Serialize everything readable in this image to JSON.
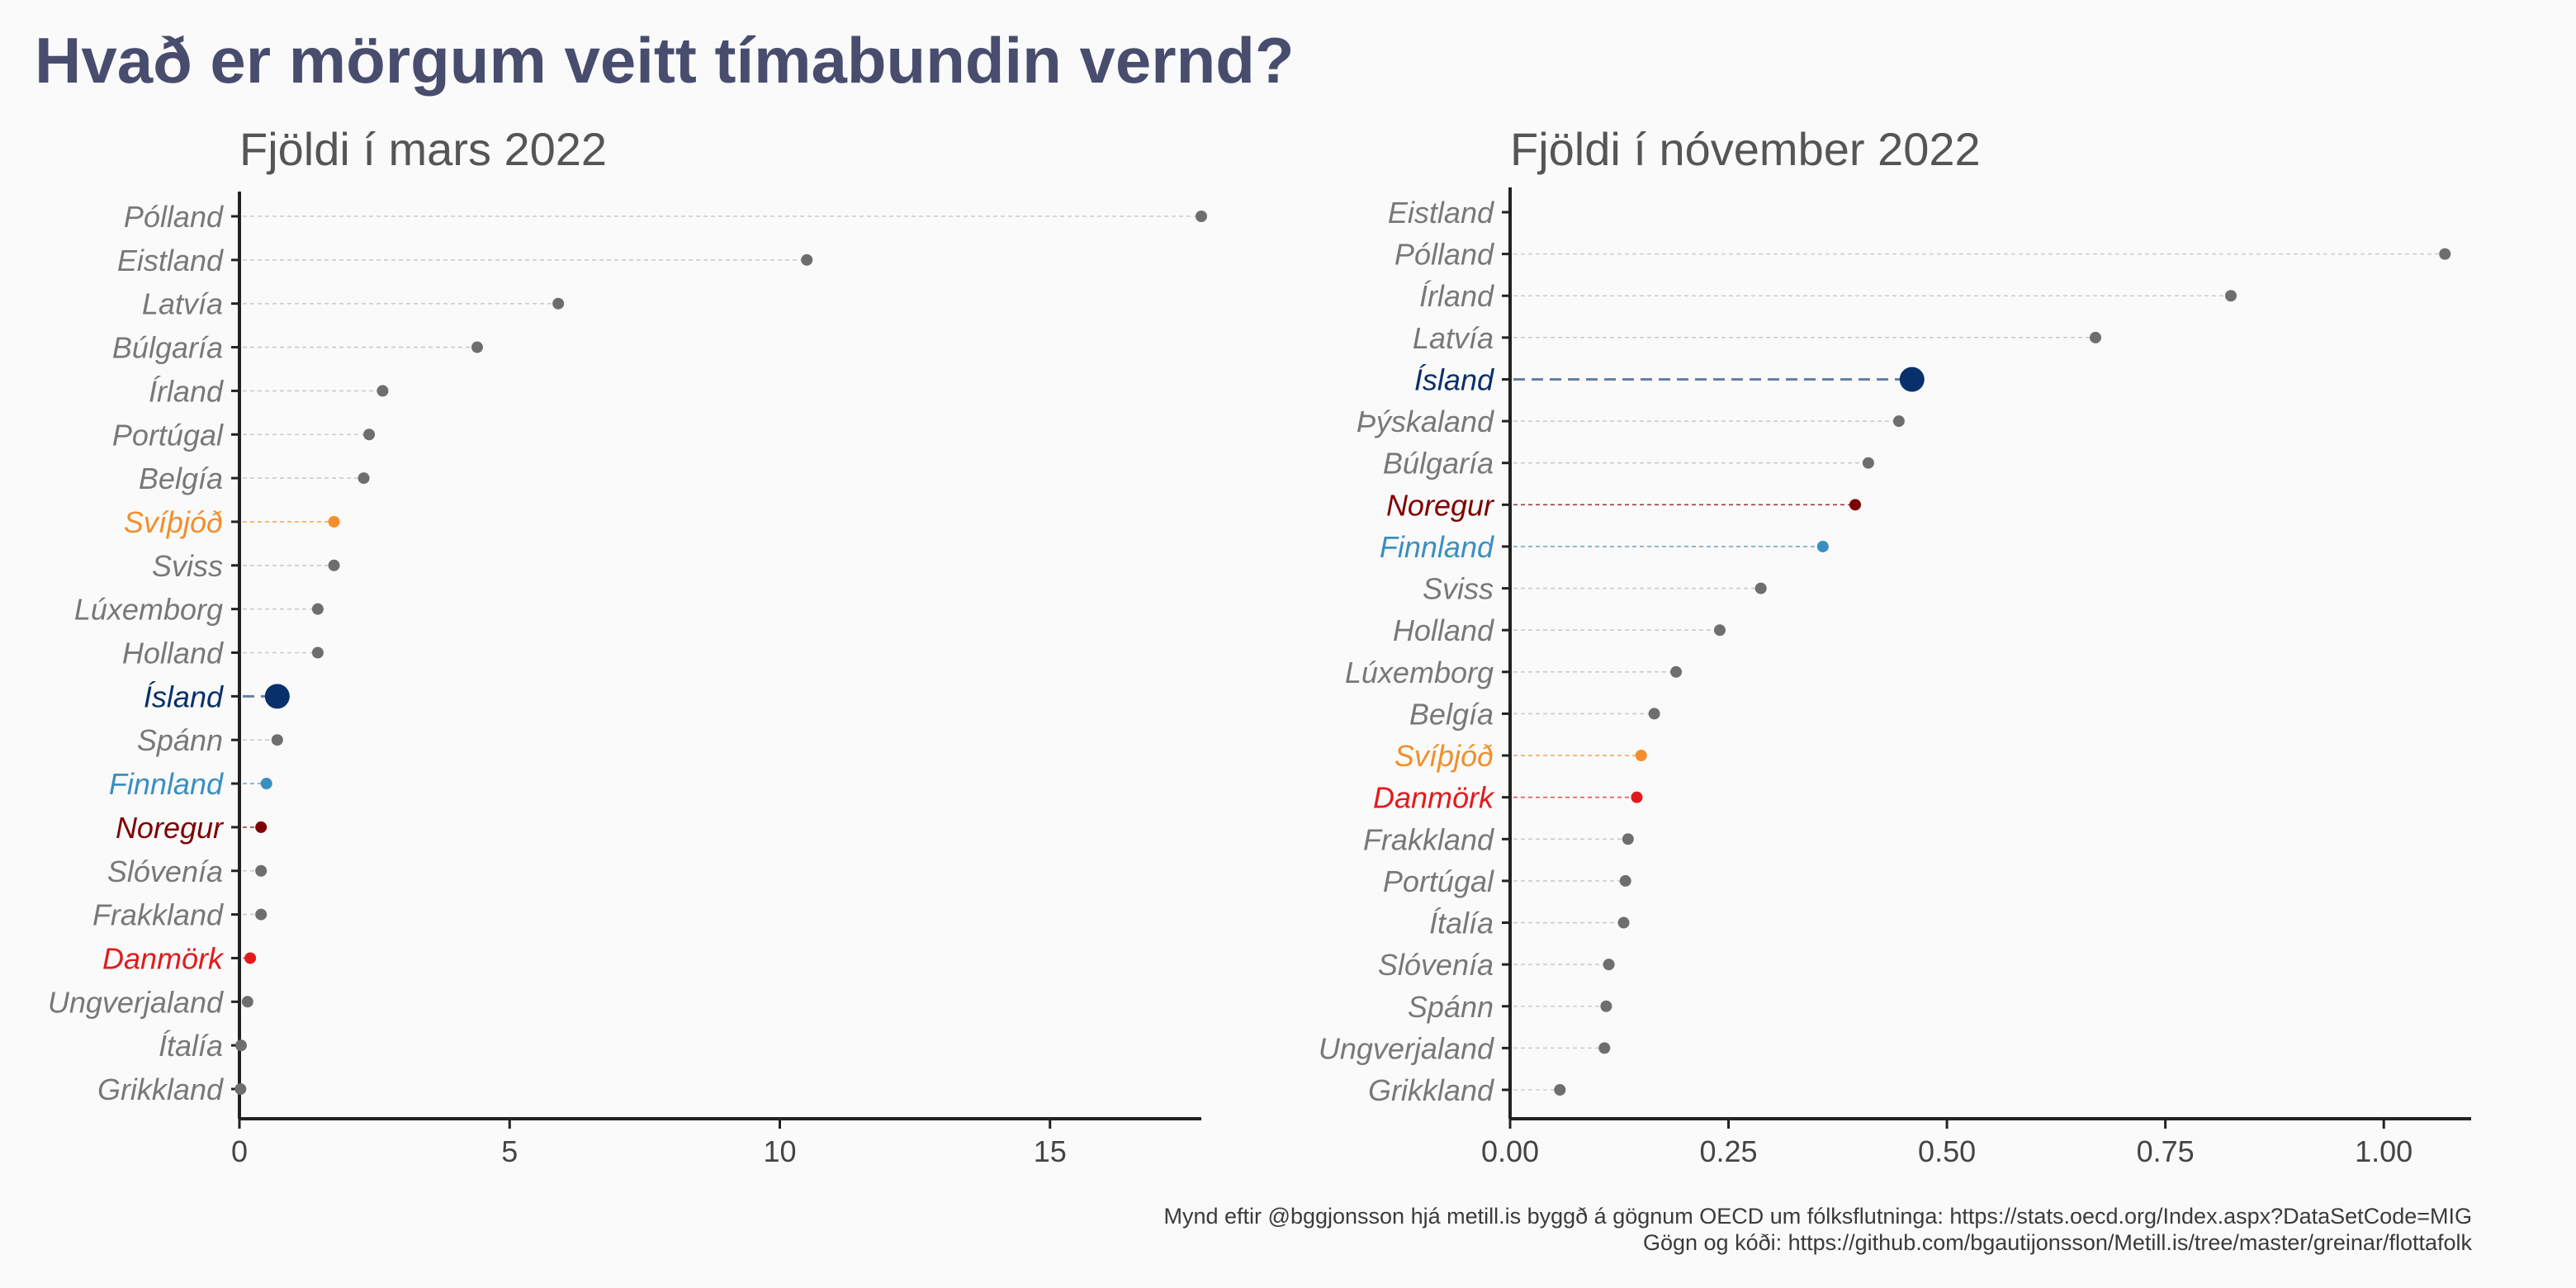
{
  "title": "Hvað er mörgum veitt tímabundin vernd?",
  "caption_line1": "Mynd eftir @bggjonsson hjá metill.is byggð á gögnum OECD um fólksflutninga: https://stats.oecd.org/Index.aspx?DataSetCode=MIG",
  "caption_line2": "Gögn og kóði: https://github.com/bgautijonsson/Metill.is/tree/master/greinar/flottafolk",
  "colors": {
    "default": "#6e6e6e",
    "label_default": "#787878",
    "Ísland": "#08306b",
    "Svíþjóð": "#f28e2b",
    "Finnland": "#3a8fc0",
    "Noregur": "#7f0000",
    "Danmörk": "#e31a1c",
    "title": "#484d6e",
    "axis": "#222222"
  },
  "chart_data": [
    {
      "type": "lollipop",
      "subtitle": "Fjöldi í mars 2022",
      "xlim": [
        0,
        17.8
      ],
      "xticks": [
        0,
        5,
        10,
        15
      ],
      "xtick_labels": [
        "0",
        "5",
        "10",
        "15"
      ],
      "highlight": "Ísland",
      "categories": [
        "Pólland",
        "Eistland",
        "Latvía",
        "Búlgaría",
        "Írland",
        "Portúgal",
        "Belgía",
        "Svíþjóð",
        "Sviss",
        "Lúxemborg",
        "Holland",
        "Ísland",
        "Spánn",
        "Finnland",
        "Noregur",
        "Slóvenía",
        "Frakkland",
        "Danmörk",
        "Ungverjaland",
        "Ítalía",
        "Grikkland"
      ],
      "values": [
        17.8,
        10.5,
        5.9,
        4.4,
        2.65,
        2.4,
        2.3,
        1.75,
        1.75,
        1.45,
        1.45,
        0.7,
        0.7,
        0.5,
        0.4,
        0.4,
        0.4,
        0.2,
        0.15,
        0.03,
        0.02
      ]
    },
    {
      "type": "lollipop",
      "subtitle": "Fjöldi í nóvember 2022",
      "xlim": [
        0,
        1.1
      ],
      "xticks": [
        0,
        0.25,
        0.5,
        0.75,
        1.0
      ],
      "xtick_labels": [
        "0.00",
        "0.25",
        "0.50",
        "0.75",
        "1.00"
      ],
      "highlight": "Ísland",
      "categories": [
        "Eistland",
        "Pólland",
        "Írland",
        "Latvía",
        "Ísland",
        "Þýskaland",
        "Búlgaría",
        "Noregur",
        "Finnland",
        "Sviss",
        "Holland",
        "Lúxemborg",
        "Belgía",
        "Svíþjóð",
        "Danmörk",
        "Frakkland",
        "Portúgal",
        "Ítalía",
        "Slóvenía",
        "Spánn",
        "Ungverjaland",
        "Grikkland"
      ],
      "values": [
        null,
        1.07,
        0.825,
        0.67,
        0.46,
        0.445,
        0.41,
        0.395,
        0.358,
        0.287,
        0.24,
        0.19,
        0.165,
        0.15,
        0.145,
        0.135,
        0.132,
        0.13,
        0.113,
        0.11,
        0.108,
        0.057
      ]
    }
  ]
}
